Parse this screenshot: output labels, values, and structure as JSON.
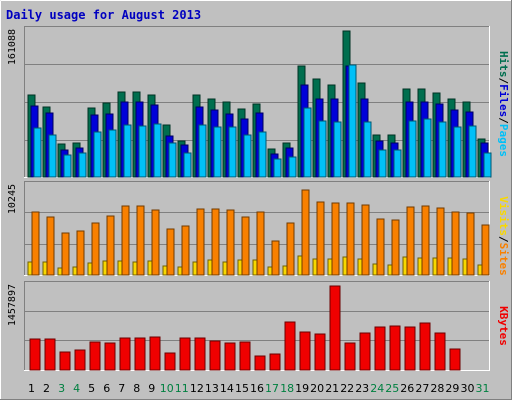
{
  "title": "Daily usage for August 2013",
  "colors": {
    "background": "#c0c0c0",
    "panel": "#c0c0c0",
    "hits": "#006e4e",
    "files": "#0000d8",
    "pages": "#00c0f8",
    "visits": "#f8d800",
    "sites": "#f88000",
    "kbytes": "#f00000",
    "title": "#0000c0",
    "weekday": "#000000",
    "weekend": "#008040"
  },
  "chart_data": [
    {
      "type": "bar",
      "panel": "top",
      "max_label": "161088",
      "ylim": [
        0,
        161088
      ],
      "right_labels": [
        {
          "text": "Hits",
          "color": "#006e4e"
        },
        {
          "text": "Files",
          "color": "#0000d8"
        },
        {
          "text": "Pages",
          "color": "#00c0f8"
        }
      ],
      "categories": [
        "1",
        "2",
        "3",
        "4",
        "5",
        "6",
        "7",
        "8",
        "9",
        "10",
        "11",
        "12",
        "13",
        "14",
        "15",
        "16",
        "17",
        "18",
        "19",
        "20",
        "21",
        "22",
        "23",
        "24",
        "25",
        "26",
        "27",
        "28",
        "29",
        "30",
        "31"
      ],
      "series": [
        {
          "name": "Hits",
          "values": [
            90000,
            77000,
            36000,
            38000,
            76000,
            82000,
            94000,
            94000,
            91000,
            57000,
            40000,
            91000,
            86000,
            83000,
            75000,
            80000,
            31000,
            37000,
            123000,
            108000,
            101000,
            161088,
            104000,
            46000,
            46000,
            97000,
            97000,
            93000,
            86000,
            83000,
            42000
          ]
        },
        {
          "name": "Files",
          "values": [
            78000,
            71000,
            30000,
            32000,
            68000,
            69000,
            83000,
            83000,
            79000,
            45000,
            35000,
            77000,
            74000,
            69000,
            64000,
            71000,
            25000,
            32000,
            101000,
            86000,
            86000,
            123000,
            86000,
            40000,
            37000,
            83000,
            83000,
            80000,
            74000,
            72000,
            37000
          ]
        },
        {
          "name": "Pages",
          "values": [
            54000,
            46000,
            24000,
            27000,
            50000,
            52000,
            57000,
            56000,
            59000,
            38000,
            26000,
            57000,
            55000,
            55000,
            46000,
            50000,
            20000,
            22000,
            76000,
            62000,
            61000,
            124000,
            61000,
            30000,
            30000,
            62000,
            64000,
            61000,
            55000,
            56000,
            27000
          ]
        }
      ]
    },
    {
      "type": "bar",
      "panel": "middle",
      "max_label": "10245",
      "ylim": [
        0,
        10245
      ],
      "right_labels": [
        {
          "text": "Visits",
          "color": "#f8d800"
        },
        {
          "text": "Sites",
          "color": "#f88000"
        }
      ],
      "categories": [
        "1",
        "2",
        "3",
        "4",
        "5",
        "6",
        "7",
        "8",
        "9",
        "10",
        "11",
        "12",
        "13",
        "14",
        "15",
        "16",
        "17",
        "18",
        "19",
        "20",
        "21",
        "22",
        "23",
        "24",
        "25",
        "26",
        "27",
        "28",
        "29",
        "30",
        "31"
      ],
      "series": [
        {
          "name": "Visits",
          "values": [
            1480,
            1480,
            830,
            880,
            1410,
            1570,
            1600,
            1480,
            1600,
            1080,
            960,
            1480,
            1670,
            1540,
            1670,
            1670,
            910,
            1090,
            2150,
            1880,
            1850,
            2020,
            1890,
            1290,
            1170,
            2030,
            1980,
            1900,
            1920,
            1870,
            1100
          ]
        },
        {
          "name": "Sites",
          "values": [
            7220,
            6640,
            4870,
            5060,
            6030,
            6800,
            7980,
            7890,
            7510,
            5280,
            5640,
            7590,
            7640,
            7470,
            6640,
            7220,
            3930,
            6000,
            9820,
            8460,
            8240,
            8320,
            8020,
            6410,
            6290,
            7880,
            7920,
            7690,
            7290,
            7100,
            5720
          ]
        }
      ]
    },
    {
      "type": "bar",
      "panel": "bottom",
      "max_label": "1457897",
      "ylim": [
        0,
        1457897
      ],
      "right_labels": [
        {
          "text": "KBytes",
          "color": "#f00000"
        }
      ],
      "categories": [
        "1",
        "2",
        "3",
        "4",
        "5",
        "6",
        "7",
        "8",
        "9",
        "10",
        "11",
        "12",
        "13",
        "14",
        "15",
        "16",
        "17",
        "18",
        "19",
        "20",
        "21",
        "22",
        "23",
        "24",
        "25",
        "26",
        "27",
        "28",
        "29",
        "30",
        "31"
      ],
      "series": [
        {
          "name": "KBytes",
          "values": [
            540000,
            530000,
            310000,
            350000,
            490000,
            470000,
            560000,
            560000,
            580000,
            300000,
            560000,
            560000,
            500000,
            470000,
            490000,
            240000,
            280000,
            840000,
            660000,
            630000,
            1457897,
            470000,
            640000,
            740000,
            770000,
            740000,
            810000,
            650000,
            360000,
            0,
            0
          ]
        }
      ]
    }
  ],
  "x_axis": {
    "days": [
      "1",
      "2",
      "3",
      "4",
      "5",
      "6",
      "7",
      "8",
      "9",
      "10",
      "11",
      "12",
      "13",
      "14",
      "15",
      "16",
      "17",
      "18",
      "19",
      "20",
      "21",
      "22",
      "23",
      "24",
      "25",
      "26",
      "27",
      "28",
      "29",
      "30",
      "31"
    ],
    "weekend_days": [
      "3",
      "4",
      "10",
      "11",
      "17",
      "18",
      "24",
      "25",
      "31"
    ]
  }
}
